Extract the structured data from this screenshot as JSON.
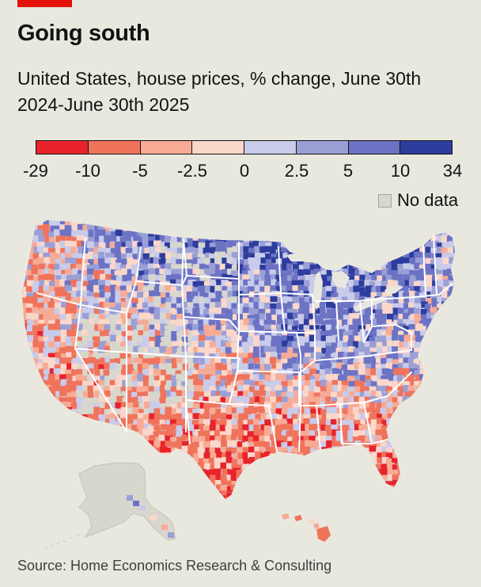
{
  "header": {
    "title": "Going south",
    "subtitle": "United States, house prices, % change, June 30th 2024-June 30th 2025",
    "accent_color": "#e3120b"
  },
  "legend": {
    "ticks": [
      "-29",
      "-10",
      "-5",
      "-2.5",
      "0",
      "2.5",
      "5",
      "10",
      "34"
    ],
    "bins": [
      {
        "from": -29,
        "to": -10,
        "color": "#e8232b"
      },
      {
        "from": -10,
        "to": -5,
        "color": "#f0735c"
      },
      {
        "from": -5,
        "to": -2.5,
        "color": "#f7ab95"
      },
      {
        "from": -2.5,
        "to": 0,
        "color": "#fbd7ca"
      },
      {
        "from": 0,
        "to": 2.5,
        "color": "#c9cbea"
      },
      {
        "from": 2.5,
        "to": 5,
        "color": "#9a9fd6"
      },
      {
        "from": 5,
        "to": 10,
        "color": "#6c73c4"
      },
      {
        "from": 10,
        "to": 34,
        "color": "#2c3d9e"
      }
    ],
    "no_data_label": "No data",
    "no_data_color": "#d8d7cd"
  },
  "map": {
    "region": "United States",
    "unit": "county",
    "regional_pattern": [
      {
        "region": "Midwest",
        "tendency": "rising"
      },
      {
        "region": "Northeast",
        "tendency": "rising"
      },
      {
        "region": "Kentucky",
        "tendency": "rising"
      },
      {
        "region": "Northern Plains",
        "tendency": "rising"
      },
      {
        "region": "Texas",
        "tendency": "falling"
      },
      {
        "region": "Florida",
        "tendency": "falling"
      },
      {
        "region": "California",
        "tendency": "falling"
      },
      {
        "region": "Gulf Coast",
        "tendency": "falling"
      },
      {
        "region": "Southwest",
        "tendency": "falling"
      },
      {
        "region": "Alaska",
        "tendency": "no data"
      }
    ]
  },
  "footer": {
    "source": "Source: Home Economics Research & Consulting"
  }
}
